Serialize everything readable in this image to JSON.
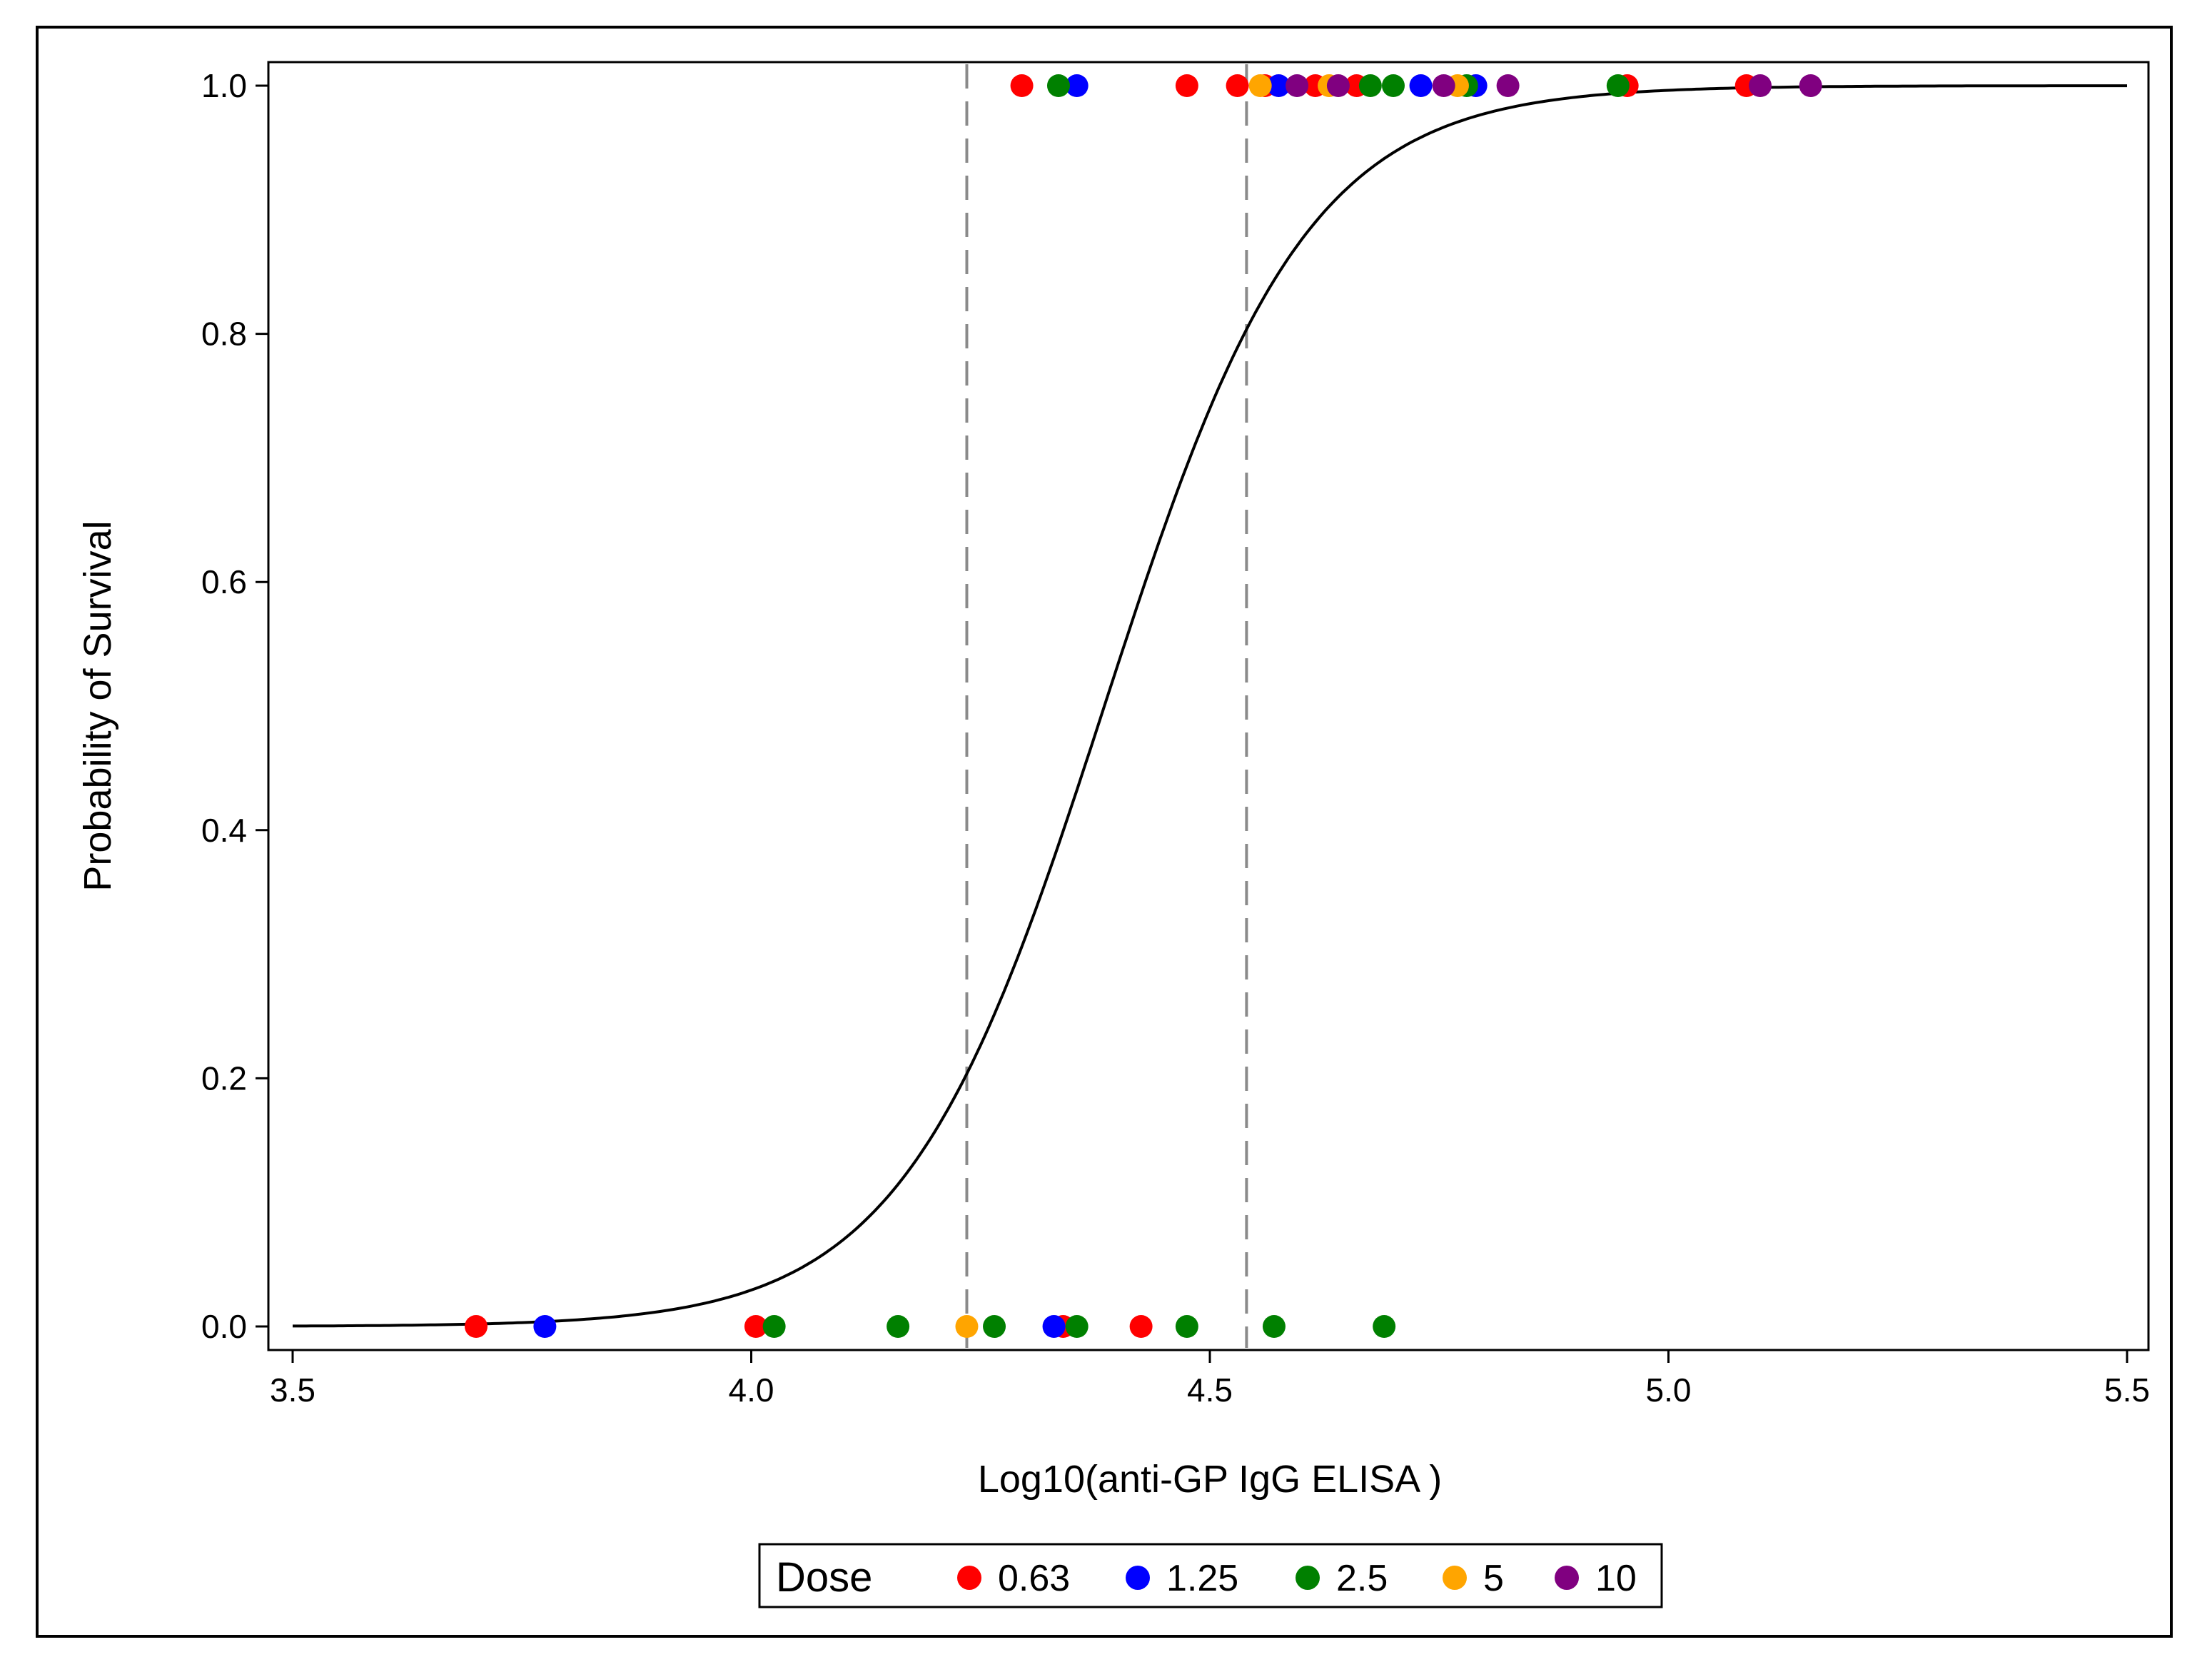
{
  "chart_data": {
    "type": "scatter",
    "xlabel": "Log10(anti-GP IgG ELISA )",
    "ylabel": "Probability of Survival",
    "xlim": [
      3.5,
      5.5
    ],
    "ylim": [
      0.0,
      1.0
    ],
    "x_ticks": [
      3.5,
      4.0,
      4.5,
      5.0,
      5.5
    ],
    "x_tick_labels": [
      "3.5",
      "4.0",
      "4.5",
      "5.0",
      "5.5"
    ],
    "y_ticks": [
      0.0,
      0.2,
      0.4,
      0.6,
      0.8,
      1.0
    ],
    "y_tick_labels": [
      "0.0",
      "0.2",
      "0.4",
      "0.6",
      "0.8",
      "1.0"
    ],
    "grid": false,
    "legend": {
      "title": "Dose",
      "placement": "bottom-center",
      "entries": [
        "0.63",
        "1.25",
        "2.5",
        "5",
        "10"
      ]
    },
    "curve": {
      "type": "logistic",
      "x_at_0.5": 4.385,
      "x_at_0.2": 4.235,
      "x_at_0.8": 4.54
    },
    "reference_lines": [
      {
        "x": 4.235,
        "style": "dashed",
        "color": "#8a8a8a"
      },
      {
        "x": 4.54,
        "style": "dashed",
        "color": "#8a8a8a"
      }
    ],
    "series": [
      {
        "name": "0.63",
        "color": "#ff0000",
        "points": [
          [
            3.7,
            0
          ],
          [
            4.005,
            0
          ],
          [
            4.34,
            0
          ],
          [
            4.425,
            0
          ],
          [
            4.295,
            1
          ],
          [
            4.475,
            1
          ],
          [
            4.53,
            1
          ],
          [
            4.56,
            1
          ],
          [
            4.615,
            1
          ],
          [
            4.66,
            1
          ],
          [
            4.955,
            1
          ],
          [
            5.085,
            1
          ]
        ]
      },
      {
        "name": "1.25",
        "color": "#0000ff",
        "points": [
          [
            3.775,
            0
          ],
          [
            4.33,
            0
          ],
          [
            4.355,
            1
          ],
          [
            4.575,
            1
          ],
          [
            4.73,
            1
          ],
          [
            4.79,
            1
          ]
        ]
      },
      {
        "name": "2.5",
        "color": "#008000",
        "points": [
          [
            4.025,
            0
          ],
          [
            4.16,
            0
          ],
          [
            4.265,
            0
          ],
          [
            4.355,
            0
          ],
          [
            4.475,
            0
          ],
          [
            4.57,
            0
          ],
          [
            4.69,
            0
          ],
          [
            4.335,
            1
          ],
          [
            4.675,
            1
          ],
          [
            4.7,
            1
          ],
          [
            4.78,
            1
          ],
          [
            4.945,
            1
          ]
        ]
      },
      {
        "name": "5",
        "color": "#ffa500",
        "points": [
          [
            4.235,
            0
          ],
          [
            4.555,
            1
          ],
          [
            4.63,
            1
          ],
          [
            4.77,
            1
          ]
        ]
      },
      {
        "name": "10",
        "color": "#800080",
        "points": [
          [
            4.595,
            1
          ],
          [
            4.64,
            1
          ],
          [
            4.755,
            1
          ],
          [
            4.825,
            1
          ],
          [
            5.1,
            1
          ],
          [
            5.155,
            1
          ]
        ]
      }
    ]
  }
}
